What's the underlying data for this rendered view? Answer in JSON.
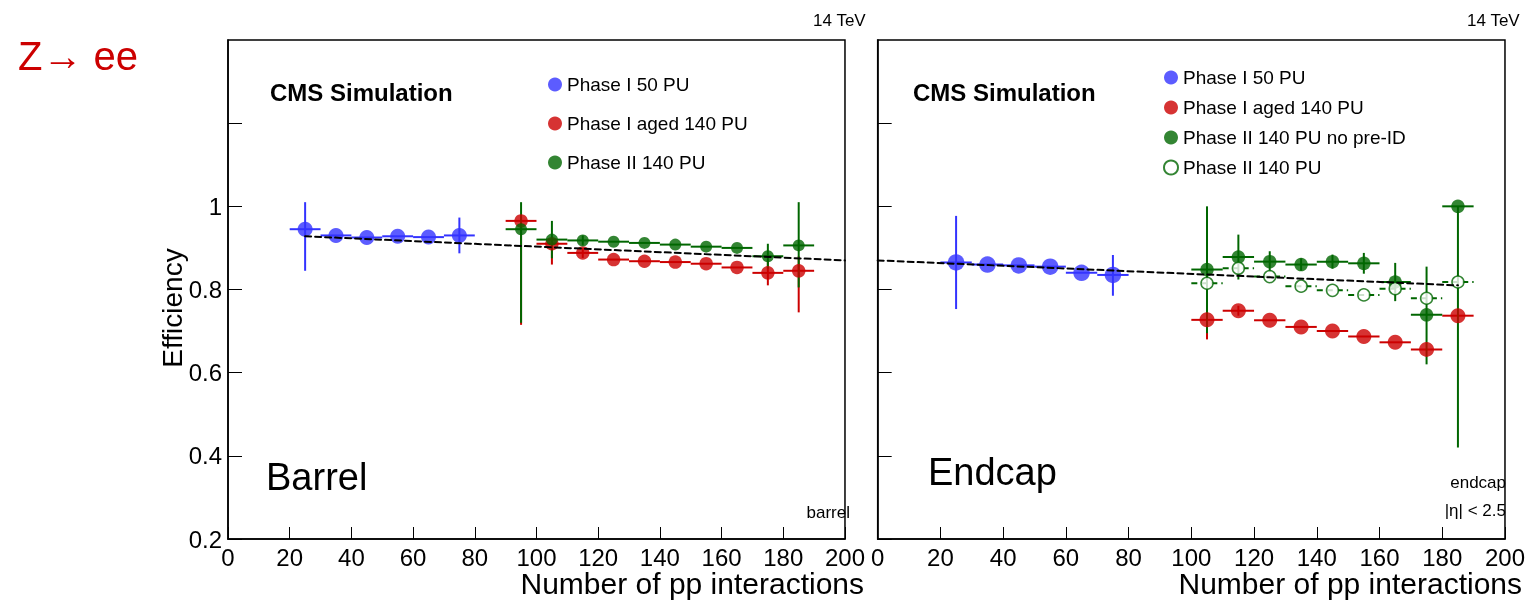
{
  "chart_data": [
    {
      "type": "scatter",
      "xlabel": "Number of pp interactions",
      "ylabel": "Efficiency",
      "xlim": [
        0,
        200
      ],
      "xticks": [
        0,
        20,
        40,
        60,
        80,
        100,
        120,
        140,
        160,
        180,
        200
      ],
      "ylim": [
        0.2,
        1.4
      ],
      "yticks": [
        0.2,
        0.4,
        0.6,
        0.8,
        1,
        {
          "value": 1.2,
          "label": null
        }
      ],
      "grid": false,
      "legend": "top right",
      "marker": "circle",
      "annotations": [
        "Z→ ee",
        "14 TeV",
        "CMS Simulation",
        "Barrel",
        "barrel"
      ],
      "series": [
        {
          "name": "Phase I 50 PU",
          "color": "#3333ff",
          "x": [
            25,
            35,
            45,
            55,
            65,
            75
          ],
          "values": [
            0.945,
            0.93,
            0.925,
            0.928,
            0.926,
            0.93
          ],
          "errors": [
            [
              0.845,
              1.01
            ],
            null,
            null,
            null,
            null,
            0.043
          ],
          "xerrors": [
            5,
            5,
            5,
            5,
            5,
            5
          ]
        },
        {
          "name": "Phase I aged 140 PU",
          "color": "#cc0000",
          "x": [
            95,
            105,
            115,
            125,
            135,
            145,
            155,
            165,
            175,
            185
          ],
          "values": [
            0.965,
            0.91,
            0.888,
            0.872,
            0.868,
            0.866,
            0.862,
            0.853,
            0.84,
            0.845
          ],
          "errors": [
            [
              0.715,
              0.975
            ],
            [
              0.86,
              0.92
            ],
            0.012,
            null,
            null,
            null,
            null,
            null,
            0.03,
            [
              0.745,
              0.88
            ]
          ],
          "xerrors": [
            5,
            5,
            5,
            5,
            5,
            5,
            5,
            5,
            5,
            5
          ]
        },
        {
          "name": "Phase II 140 PU",
          "color": "#006600",
          "x": [
            95,
            105,
            115,
            125,
            135,
            145,
            155,
            165,
            175,
            185
          ],
          "values": [
            0.945,
            0.92,
            0.918,
            0.915,
            0.912,
            0.908,
            0.903,
            0.9,
            0.88,
            0.906
          ],
          "errors": [
            [
              0.72,
              1.01
            ],
            0.045,
            0.012,
            null,
            null,
            null,
            null,
            null,
            0.03,
            [
              0.805,
              1.01
            ]
          ],
          "xerrors": [
            5,
            5,
            5,
            5,
            5,
            5,
            5,
            5,
            5,
            5
          ]
        },
        {
          "type": "line",
          "color": "#000000",
          "x": [
            25,
            200
          ],
          "values": [
            0.928,
            0.87
          ],
          "line_style": "dashed",
          "marker": "none"
        }
      ]
    },
    {
      "type": "scatter",
      "xlabel": "Number of pp interactions",
      "xlim": [
        0,
        200
      ],
      "xticks": [
        0,
        20,
        40,
        60,
        80,
        100,
        120,
        140,
        160,
        180,
        200
      ],
      "ylim": [
        0.2,
        1.4
      ],
      "yticks": [
        0.2,
        0.4,
        0.6,
        0.8,
        1,
        {
          "value": 1.2,
          "label": null
        }
      ],
      "tick_labels": "x",
      "grid": false,
      "legend": "top right",
      "marker": "circle",
      "annotations": [
        "14 TeV",
        "CMS Simulation",
        "Endcap",
        "endcap",
        "|η| < 2.5"
      ],
      "series": [
        {
          "name": "Phase I 50 PU",
          "color": "#3333ff",
          "x": [
            25,
            35,
            45,
            55,
            65,
            75
          ],
          "values": [
            0.865,
            0.86,
            0.858,
            0.855,
            0.84,
            0.835
          ],
          "errors": [
            [
              0.753,
              0.977
            ],
            null,
            null,
            null,
            null,
            [
              0.785,
              0.883
            ]
          ],
          "xerrors": [
            5,
            5,
            5,
            5,
            5,
            5
          ]
        },
        {
          "name": "Phase I aged 140 PU",
          "color": "#cc0000",
          "x": [
            105,
            115,
            125,
            135,
            145,
            155,
            165,
            175,
            185
          ],
          "values": [
            0.727,
            0.749,
            0.726,
            0.71,
            0.7,
            0.687,
            0.673,
            0.656,
            0.737
          ],
          "errors": [
            [
              0.68,
              0.76
            ],
            0.012,
            null,
            null,
            null,
            null,
            null,
            null,
            null
          ],
          "xerrors": [
            5,
            5,
            5,
            5,
            5,
            5,
            5,
            5,
            5
          ]
        },
        {
          "name": "Phase II 140 PU no pre-ID",
          "color": "#006600",
          "x": [
            105,
            115,
            125,
            135,
            145,
            155,
            165,
            175,
            185
          ],
          "values": [
            0.848,
            0.878,
            0.867,
            0.86,
            0.867,
            0.863,
            0.818,
            0.739,
            1.0
          ],
          "errors": [
            [
              0.695,
              1.0
            ],
            0.054,
            0.025,
            0.015,
            0.017,
            0.025,
            0.046,
            [
              0.62,
              0.855
            ],
            [
              0.42,
              1.0
            ]
          ],
          "xerrors": [
            5,
            5,
            5,
            5,
            5,
            5,
            5,
            5,
            5
          ]
        },
        {
          "name": "Phase II 140 PU",
          "color": "#006600",
          "x": [
            105,
            115,
            125,
            135,
            145,
            155,
            165,
            175,
            185
          ],
          "values": [
            0.815,
            0.851,
            0.831,
            0.808,
            0.798,
            0.787,
            0.802,
            0.779,
            0.818
          ],
          "errors": [
            null,
            null,
            null,
            null,
            null,
            null,
            null,
            null,
            null
          ],
          "xerrors": [
            5,
            5,
            5,
            5,
            5,
            5,
            5,
            5,
            5
          ],
          "line_style": "dashed"
        },
        {
          "type": "line",
          "color": "#000000",
          "x": [
            0,
            185
          ],
          "values": [
            0.87,
            0.81
          ],
          "line_style": "dashed",
          "marker": "none"
        }
      ]
    }
  ]
}
